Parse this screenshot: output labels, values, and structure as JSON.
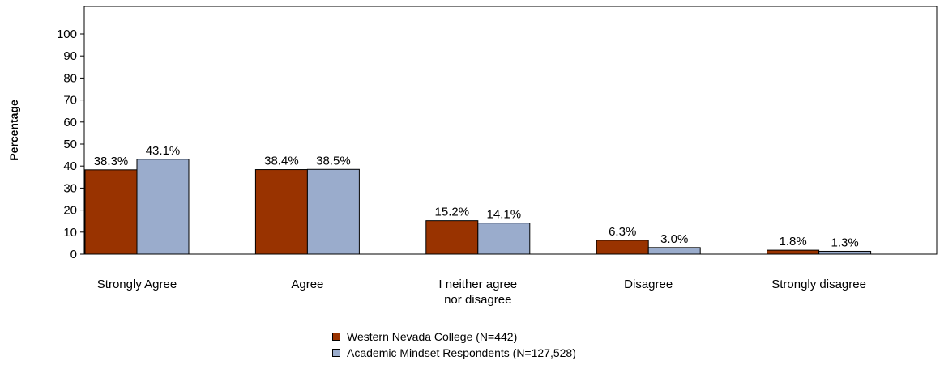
{
  "chart_data": {
    "type": "bar",
    "title": "",
    "xlabel": "",
    "ylabel": "Percentage",
    "ylim": [
      0,
      100
    ],
    "yticks": [
      0,
      10,
      20,
      30,
      40,
      50,
      60,
      70,
      80,
      90,
      100
    ],
    "categories": [
      [
        "Strongly Agree"
      ],
      [
        "Agree"
      ],
      [
        "I neither agree",
        "nor disagree"
      ],
      [
        "Disagree"
      ],
      [
        "Strongly disagree"
      ]
    ],
    "series": [
      {
        "name": "Western Nevada College (N=442)",
        "color": "#993300",
        "values": [
          38.3,
          38.4,
          15.2,
          6.3,
          1.8
        ],
        "labels": [
          "38.3%",
          "38.4%",
          "15.2%",
          "6.3%",
          "1.8%"
        ]
      },
      {
        "name": "Academic Mindset Respondents (N=127,528)",
        "color": "#9aaccc",
        "values": [
          43.1,
          38.5,
          14.1,
          3.0,
          1.3
        ],
        "labels": [
          "43.1%",
          "38.5%",
          "14.1%",
          "3.0%",
          "1.3%"
        ]
      }
    ],
    "grid": false,
    "legend_position": "bottom"
  }
}
